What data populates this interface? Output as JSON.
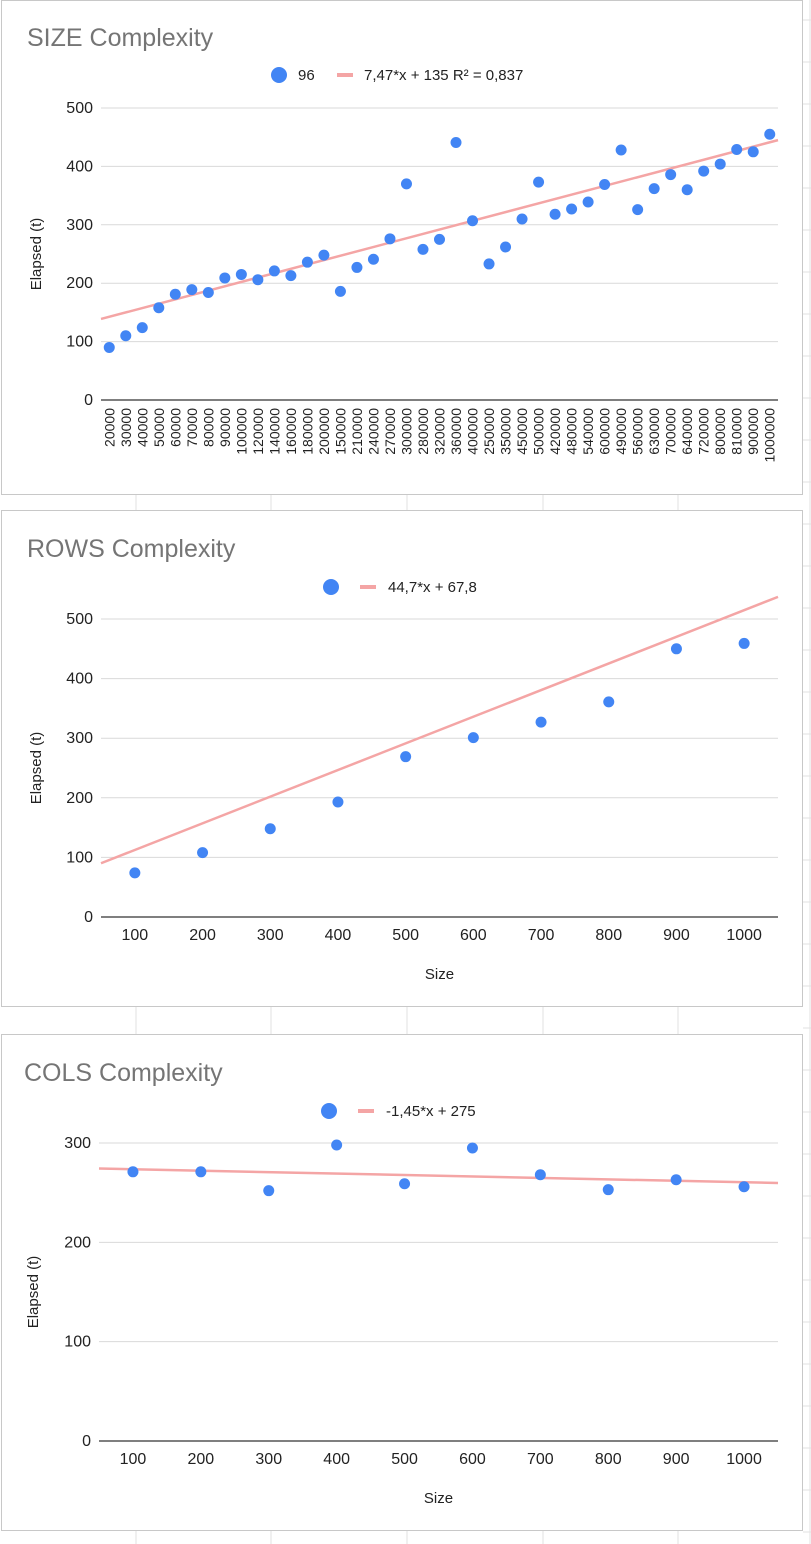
{
  "colors": {
    "point": "#4285f4",
    "trendline": "#f4a5a5",
    "gridline": "#d9d9d9",
    "baseline": "#333333",
    "title": "#757575",
    "sheet_grid": "#e2e2e2"
  },
  "chart_data": [
    {
      "type": "scatter",
      "title": "SIZE Complexity",
      "xlabel": "",
      "ylabel": "Elapsed (t)",
      "x_type": "category",
      "categories": [
        "20000",
        "30000",
        "40000",
        "50000",
        "60000",
        "70000",
        "80000",
        "90000",
        "100000",
        "120000",
        "140000",
        "160000",
        "180000",
        "200000",
        "150000",
        "210000",
        "240000",
        "270000",
        "300000",
        "280000",
        "320000",
        "360000",
        "400000",
        "250000",
        "350000",
        "450000",
        "500000",
        "420000",
        "480000",
        "540000",
        "600000",
        "490000",
        "560000",
        "630000",
        "700000",
        "640000",
        "720000",
        "800000",
        "810000",
        "900000",
        "1000000"
      ],
      "y_ticks": [
        "0",
        "100",
        "200",
        "300",
        "400",
        "500"
      ],
      "ylim": [
        0,
        500
      ],
      "grid": true,
      "legend_position": "top",
      "series": [
        {
          "name": "96",
          "values": [
            90,
            110,
            124,
            158,
            181,
            189,
            184,
            209,
            215,
            206,
            221,
            213,
            236,
            248,
            186,
            227,
            241,
            276,
            370,
            258,
            275,
            441,
            307,
            233,
            262,
            310,
            373,
            318,
            327,
            339,
            369,
            428,
            326,
            362,
            386,
            360,
            392,
            404,
            429,
            425,
            455
          ]
        }
      ],
      "trendline": {
        "slope": 7.47,
        "intercept": 135,
        "label": "7,47*x + 135 R² = 0,837"
      }
    },
    {
      "type": "scatter",
      "title": "ROWS Complexity",
      "xlabel": "Size",
      "ylabel": "Elapsed (t)",
      "x_type": "numeric",
      "x_ticks": [
        "100",
        "200",
        "300",
        "400",
        "500",
        "600",
        "700",
        "800",
        "900",
        "1000"
      ],
      "y_ticks": [
        "0",
        "100",
        "200",
        "300",
        "400",
        "500"
      ],
      "xlim": [
        50,
        1050
      ],
      "ylim": [
        0,
        500
      ],
      "grid": true,
      "legend_position": "top",
      "series": [
        {
          "x": [
            100,
            200,
            300,
            400,
            500,
            600,
            700,
            800,
            900,
            1000
          ],
          "y": [
            74,
            108,
            148,
            193,
            269,
            301,
            327,
            361,
            450,
            459
          ]
        }
      ],
      "trendline": {
        "slope": 44.7,
        "intercept": 67.8,
        "label": "44,7*x + 67,8"
      }
    },
    {
      "type": "scatter",
      "title": "COLS Complexity",
      "xlabel": "Size",
      "ylabel": "Elapsed (t)",
      "x_type": "numeric",
      "x_ticks": [
        "100",
        "200",
        "300",
        "400",
        "500",
        "600",
        "700",
        "800",
        "900",
        "1000"
      ],
      "y_ticks": [
        "0",
        "100",
        "200",
        "300"
      ],
      "xlim": [
        50,
        1050
      ],
      "ylim": [
        0,
        300
      ],
      "grid": true,
      "legend_position": "top",
      "series": [
        {
          "x": [
            100,
            200,
            300,
            400,
            500,
            600,
            700,
            800,
            900,
            1000
          ],
          "y": [
            271,
            271,
            252,
            298,
            259,
            295,
            268,
            253,
            263,
            256
          ]
        }
      ],
      "trendline": {
        "slope": -1.45,
        "intercept": 275,
        "label": "-1,45*x + 275"
      }
    }
  ]
}
